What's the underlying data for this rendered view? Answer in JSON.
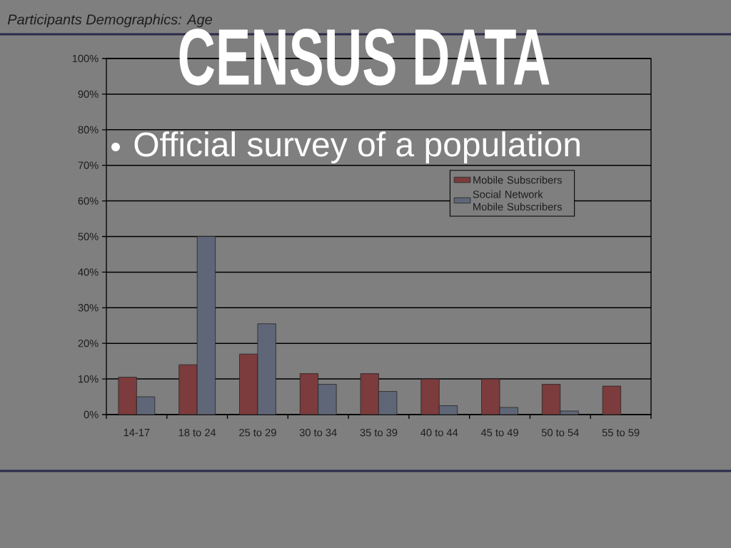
{
  "chart_data": {
    "type": "bar",
    "title": "CENSUS DATA",
    "subtitle": "Participants Demographics: Age",
    "annotations": [
      "Official survey of a population"
    ],
    "categories": [
      "14-17",
      "18 to 24",
      "25 to 29",
      "30 to 34",
      "35 to 39",
      "40 to 44",
      "45 to 49",
      "50 to 54",
      "55 to 59"
    ],
    "series": [
      {
        "name": "Mobile Subscribers",
        "color": "#7c3b3c",
        "values": [
          10.5,
          14,
          17,
          11.5,
          11.5,
          10,
          10,
          8.5,
          8
        ]
      },
      {
        "name": "Social Network Mobile Subscribers",
        "color": "#5f6677",
        "values": [
          5,
          50,
          25.5,
          8.5,
          6.5,
          2.5,
          2,
          1,
          null
        ]
      }
    ],
    "ylim": [
      0,
      100
    ],
    "yticks": [
      {
        "value": 0,
        "label": "0%"
      },
      {
        "value": 10,
        "label": "10%"
      },
      {
        "value": 20,
        "label": "20%"
      },
      {
        "value": 30,
        "label": "30%"
      },
      {
        "value": 40,
        "label": "40%"
      },
      {
        "value": 50,
        "label": "50%"
      },
      {
        "value": 60,
        "label": "60%"
      },
      {
        "value": 70,
        "label": "70%"
      },
      {
        "value": 80,
        "label": "80%"
      },
      {
        "value": 90,
        "label": "90%"
      },
      {
        "value": 100,
        "label": "100%"
      }
    ],
    "grid": "y",
    "legend": "top right"
  }
}
